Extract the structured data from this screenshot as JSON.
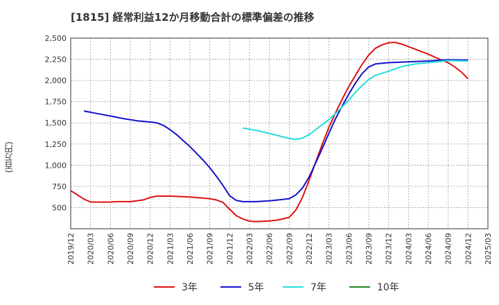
{
  "chart_data": {
    "type": "line",
    "title": "[1815]  経常利益12か月移動合計の標準偏差の推移",
    "ylabel": "(百万円)",
    "xlabel": "",
    "ylim": [
      250,
      2500
    ],
    "y_ticks": [
      500,
      750,
      1000,
      1250,
      1500,
      1750,
      2000,
      2250,
      2500
    ],
    "y_tick_labels": [
      "500",
      "750",
      "1,000",
      "1,250",
      "1,500",
      "1,750",
      "2,000",
      "2,250",
      "2,500"
    ],
    "x_tick_labels": [
      "2019/12",
      "2020/03",
      "2020/06",
      "2020/09",
      "2020/12",
      "2021/03",
      "2021/06",
      "2021/09",
      "2021/12",
      "2022/03",
      "2022/06",
      "2022/09",
      "2022/12",
      "2023/03",
      "2023/06",
      "2023/09",
      "2023/12",
      "2024/03",
      "2024/06",
      "2024/09",
      "2024/12",
      "2025/03"
    ],
    "grid": true,
    "legend_position": "bottom",
    "series": [
      {
        "name": "3年",
        "color": "#dd1111",
        "points": [
          [
            "2019/12",
            700
          ],
          [
            "2020/02",
            600
          ],
          [
            "2020/03",
            565
          ],
          [
            "2020/06",
            565
          ],
          [
            "2020/07",
            570
          ],
          [
            "2020/09",
            570
          ],
          [
            "2020/11",
            590
          ],
          [
            "2020/12",
            620
          ],
          [
            "2021/01",
            635
          ],
          [
            "2021/03",
            635
          ],
          [
            "2021/06",
            625
          ],
          [
            "2021/09",
            605
          ],
          [
            "2021/10",
            590
          ],
          [
            "2021/11",
            560
          ],
          [
            "2021/12",
            480
          ],
          [
            "2022/01",
            405
          ],
          [
            "2022/02",
            365
          ],
          [
            "2022/03",
            340
          ],
          [
            "2022/04",
            335
          ],
          [
            "2022/05",
            338
          ],
          [
            "2022/06",
            342
          ],
          [
            "2022/07",
            350
          ],
          [
            "2022/08",
            365
          ],
          [
            "2022/09",
            385
          ],
          [
            "2022/10",
            470
          ],
          [
            "2022/11",
            620
          ],
          [
            "2022/12",
            820
          ],
          [
            "2023/01",
            1040
          ],
          [
            "2023/02",
            1250
          ],
          [
            "2023/03",
            1450
          ],
          [
            "2023/04",
            1620
          ],
          [
            "2023/05",
            1780
          ],
          [
            "2023/06",
            1930
          ],
          [
            "2023/07",
            2060
          ],
          [
            "2023/08",
            2190
          ],
          [
            "2023/09",
            2300
          ],
          [
            "2023/10",
            2380
          ],
          [
            "2023/11",
            2420
          ],
          [
            "2023/12",
            2445
          ],
          [
            "2024/01",
            2450
          ],
          [
            "2024/02",
            2430
          ],
          [
            "2024/03",
            2400
          ],
          [
            "2024/06",
            2310
          ],
          [
            "2024/08",
            2240
          ],
          [
            "2024/09",
            2210
          ],
          [
            "2024/10",
            2160
          ],
          [
            "2024/11",
            2100
          ],
          [
            "2024/12",
            2020
          ]
        ]
      },
      {
        "name": "5年",
        "color": "#1111cc",
        "points": [
          [
            "2020/02",
            1640
          ],
          [
            "2020/04",
            1610
          ],
          [
            "2020/06",
            1580
          ],
          [
            "2020/08",
            1550
          ],
          [
            "2020/10",
            1525
          ],
          [
            "2020/12",
            1510
          ],
          [
            "2021/01",
            1500
          ],
          [
            "2021/02",
            1470
          ],
          [
            "2021/03",
            1420
          ],
          [
            "2021/04",
            1360
          ],
          [
            "2021/05",
            1290
          ],
          [
            "2021/06",
            1220
          ],
          [
            "2021/07",
            1140
          ],
          [
            "2021/08",
            1060
          ],
          [
            "2021/09",
            970
          ],
          [
            "2021/10",
            870
          ],
          [
            "2021/11",
            760
          ],
          [
            "2021/12",
            640
          ],
          [
            "2022/01",
            585
          ],
          [
            "2022/02",
            570
          ],
          [
            "2022/04",
            570
          ],
          [
            "2022/06",
            580
          ],
          [
            "2022/08",
            595
          ],
          [
            "2022/09",
            605
          ],
          [
            "2022/10",
            650
          ],
          [
            "2022/11",
            730
          ],
          [
            "2022/12",
            860
          ],
          [
            "2023/01",
            1030
          ],
          [
            "2023/02",
            1200
          ],
          [
            "2023/03",
            1380
          ],
          [
            "2023/04",
            1550
          ],
          [
            "2023/05",
            1700
          ],
          [
            "2023/06",
            1840
          ],
          [
            "2023/07",
            1970
          ],
          [
            "2023/08",
            2080
          ],
          [
            "2023/09",
            2160
          ],
          [
            "2023/10",
            2195
          ],
          [
            "2023/12",
            2210
          ],
          [
            "2024/03",
            2220
          ],
          [
            "2024/06",
            2230
          ],
          [
            "2024/09",
            2245
          ],
          [
            "2024/12",
            2240
          ]
        ]
      },
      {
        "name": "7年",
        "color": "#22dddd",
        "points": [
          [
            "2022/02",
            1440
          ],
          [
            "2022/04",
            1410
          ],
          [
            "2022/06",
            1375
          ],
          [
            "2022/07",
            1355
          ],
          [
            "2022/08",
            1335
          ],
          [
            "2022/09",
            1315
          ],
          [
            "2022/10",
            1305
          ],
          [
            "2022/11",
            1320
          ],
          [
            "2022/12",
            1360
          ],
          [
            "2023/01",
            1420
          ],
          [
            "2023/02",
            1480
          ],
          [
            "2023/03",
            1540
          ],
          [
            "2023/04",
            1610
          ],
          [
            "2023/05",
            1690
          ],
          [
            "2023/06",
            1770
          ],
          [
            "2023/07",
            1860
          ],
          [
            "2023/08",
            1940
          ],
          [
            "2023/09",
            2010
          ],
          [
            "2023/10",
            2060
          ],
          [
            "2023/12",
            2110
          ],
          [
            "2024/02",
            2165
          ],
          [
            "2024/04",
            2195
          ],
          [
            "2024/06",
            2210
          ],
          [
            "2024/09",
            2235
          ],
          [
            "2024/12",
            2230
          ]
        ]
      },
      {
        "name": "10年",
        "color": "#228822",
        "points": []
      }
    ]
  }
}
